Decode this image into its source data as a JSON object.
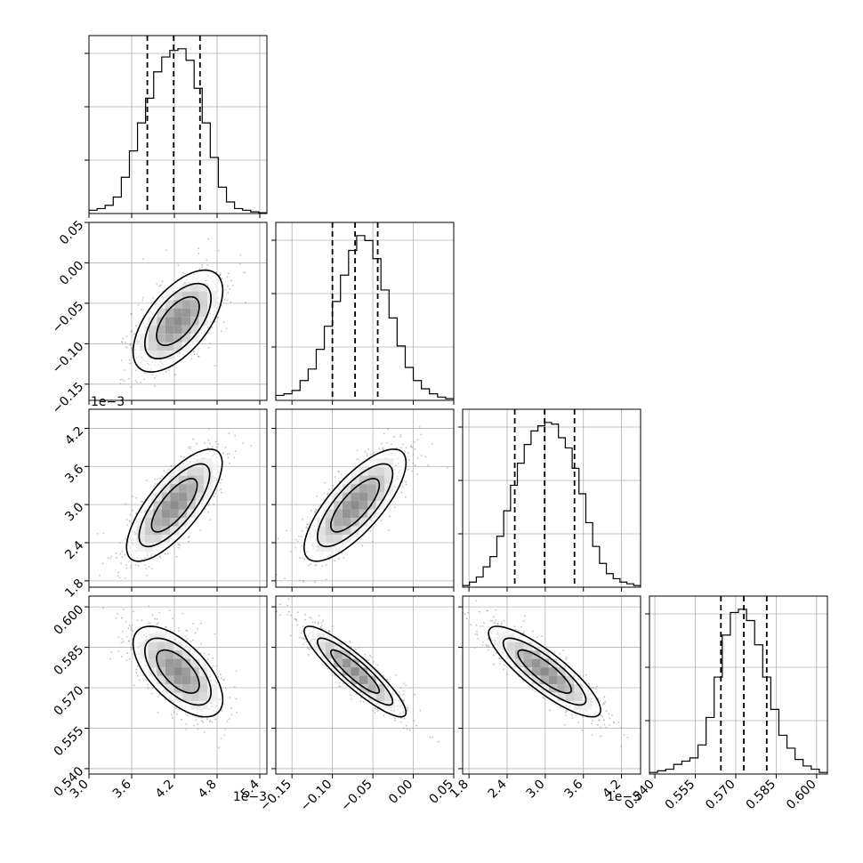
{
  "chart_data": {
    "type": "corner",
    "grid": true,
    "params": [
      {
        "range": [
          3.0,
          5.5
        ],
        "ticks": [
          3.0,
          3.6,
          4.2,
          4.8,
          5.4
        ],
        "tick_labels": [
          "3.0",
          "3.6",
          "4.2",
          "4.8",
          "5.4"
        ],
        "offset_label": "1e−3",
        "quantiles": [
          3.82,
          4.19,
          4.56
        ]
      },
      {
        "range": [
          -0.17,
          0.05
        ],
        "ticks": [
          -0.15,
          -0.1,
          -0.05,
          0.0,
          0.05
        ],
        "tick_labels": [
          "−0.15",
          "−0.10",
          "−0.05",
          "0.00",
          "0.05"
        ],
        "offset_label": "",
        "quantiles": [
          -0.1,
          -0.072,
          -0.044
        ]
      },
      {
        "range": [
          1.7,
          4.5
        ],
        "ticks": [
          1.8,
          2.4,
          3.0,
          3.6,
          4.2
        ],
        "tick_labels": [
          "1.8",
          "2.4",
          "3.0",
          "3.6",
          "4.2"
        ],
        "offset_label": "1e−3",
        "quantiles": [
          2.52,
          2.99,
          3.46
        ]
      },
      {
        "range": [
          0.538,
          0.604
        ],
        "ticks": [
          0.54,
          0.555,
          0.57,
          0.585,
          0.6
        ],
        "tick_labels": [
          "0.540",
          "0.555",
          "0.570",
          "0.585",
          "0.600"
        ],
        "offset_label": "",
        "quantiles": [
          0.5645,
          0.573,
          0.5815
        ]
      }
    ],
    "histograms": [
      [
        0.02,
        0.03,
        0.05,
        0.1,
        0.22,
        0.38,
        0.55,
        0.7,
        0.86,
        0.95,
        0.99,
        1.0,
        0.93,
        0.76,
        0.55,
        0.34,
        0.16,
        0.07,
        0.03,
        0.02,
        0.01,
        0.005
      ],
      [
        0.03,
        0.04,
        0.06,
        0.12,
        0.19,
        0.31,
        0.45,
        0.6,
        0.76,
        0.91,
        1.0,
        0.97,
        0.86,
        0.67,
        0.5,
        0.33,
        0.2,
        0.12,
        0.07,
        0.04,
        0.02,
        0.01
      ],
      [
        0.01,
        0.03,
        0.06,
        0.12,
        0.18,
        0.3,
        0.45,
        0.6,
        0.73,
        0.84,
        0.92,
        0.95,
        0.97,
        0.96,
        0.88,
        0.82,
        0.7,
        0.55,
        0.38,
        0.24,
        0.14,
        0.08,
        0.05,
        0.03,
        0.02,
        0.01
      ],
      [
        0.01,
        0.02,
        0.03,
        0.06,
        0.08,
        0.1,
        0.18,
        0.35,
        0.6,
        0.86,
        1.0,
        1.02,
        0.95,
        0.8,
        0.6,
        0.4,
        0.24,
        0.16,
        0.09,
        0.05,
        0.03,
        0.01
      ]
    ],
    "pair_stats": [
      {
        "row": 1,
        "col": 0,
        "mean": [
          4.25,
          -0.072
        ],
        "sd": [
          0.3,
          0.03
        ],
        "rho": 0.6
      },
      {
        "row": 2,
        "col": 0,
        "mean": [
          4.2,
          2.99
        ],
        "sd": [
          0.32,
          0.42
        ],
        "rho": 0.75
      },
      {
        "row": 2,
        "col": 1,
        "mean": [
          -0.072,
          2.99
        ],
        "sd": [
          0.03,
          0.42
        ],
        "rho": 0.76
      },
      {
        "row": 3,
        "col": 0,
        "mean": [
          4.25,
          0.576
        ],
        "sd": [
          0.3,
          0.008
        ],
        "rho": -0.62
      },
      {
        "row": 3,
        "col": 1,
        "mean": [
          -0.072,
          0.576
        ],
        "sd": [
          0.03,
          0.008
        ],
        "rho": -0.9
      },
      {
        "row": 3,
        "col": 2,
        "mean": [
          2.99,
          0.576
        ],
        "sd": [
          0.42,
          0.008
        ],
        "rho": -0.85
      }
    ]
  }
}
